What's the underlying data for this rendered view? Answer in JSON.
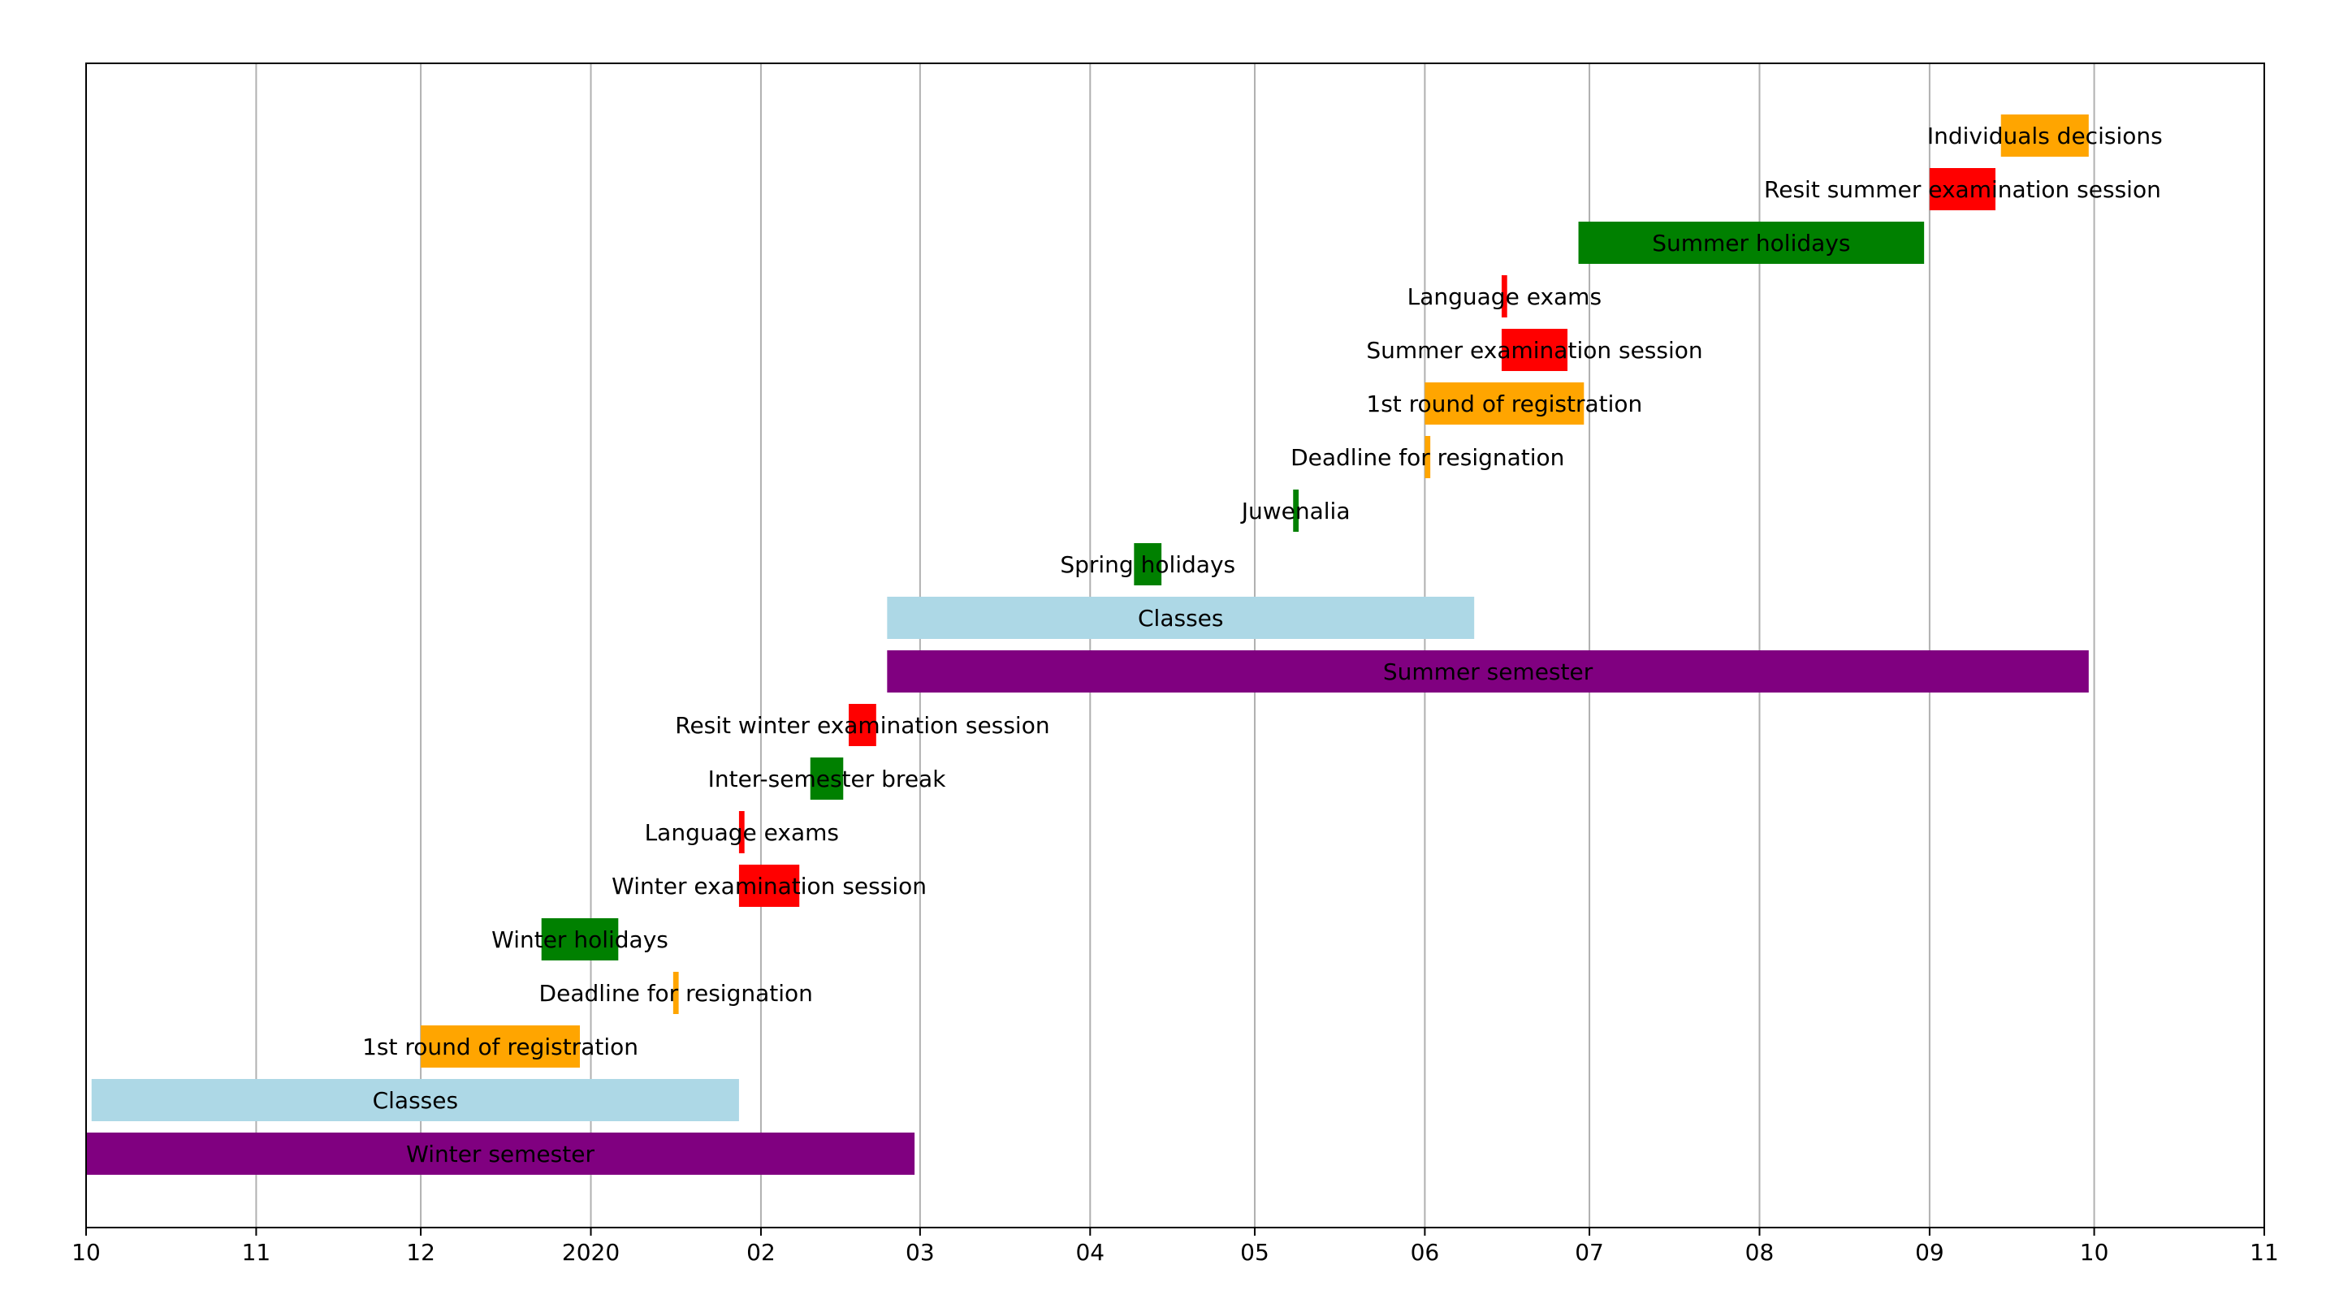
{
  "chart_data": {
    "type": "gantt",
    "title": "",
    "xlabel": "",
    "ylabel": "",
    "grid": "vertical",
    "x_range": [
      "2019-10-01",
      "2020-11-01"
    ],
    "tick_labels": [
      "10",
      "11",
      "12",
      "2020",
      "02",
      "03",
      "04",
      "05",
      "06",
      "07",
      "08",
      "09",
      "10",
      "11"
    ],
    "tick_dates": [
      "2019-10-01",
      "2019-11-01",
      "2019-12-01",
      "2020-01-01",
      "2020-02-01",
      "2020-03-01",
      "2020-04-01",
      "2020-05-01",
      "2020-06-01",
      "2020-07-01",
      "2020-08-01",
      "2020-09-01",
      "2020-10-01",
      "2020-11-01"
    ],
    "colors": {
      "semester": "#800080",
      "classes": "#add8e6",
      "registration": "#ffa500",
      "exams": "#ff0000",
      "holidays": "#008000"
    },
    "tasks": [
      {
        "label": "Winter semester",
        "start": "2019-10-01",
        "end": "2020-02-29",
        "category": "semester"
      },
      {
        "label": "Classes",
        "start": "2019-10-02",
        "end": "2020-01-28",
        "category": "classes"
      },
      {
        "label": "1st round of registration",
        "start": "2019-12-01",
        "end": "2019-12-30",
        "category": "registration"
      },
      {
        "label": "Deadline for resignation",
        "start": "2020-01-16",
        "end": "2020-01-17",
        "category": "registration"
      },
      {
        "label": "Winter holidays",
        "start": "2019-12-23",
        "end": "2020-01-06",
        "category": "holidays"
      },
      {
        "label": "Winter examination session",
        "start": "2020-01-28",
        "end": "2020-02-08",
        "category": "exams"
      },
      {
        "label": "Language exams",
        "start": "2020-01-28",
        "end": "2020-01-29",
        "category": "exams"
      },
      {
        "label": "Inter-semester break",
        "start": "2020-02-10",
        "end": "2020-02-16",
        "category": "holidays"
      },
      {
        "label": "Resit winter examination session",
        "start": "2020-02-17",
        "end": "2020-02-22",
        "category": "exams"
      },
      {
        "label": "Summer semester",
        "start": "2020-02-24",
        "end": "2020-09-30",
        "category": "semester"
      },
      {
        "label": "Classes",
        "start": "2020-02-24",
        "end": "2020-06-10",
        "category": "classes"
      },
      {
        "label": "Spring holidays",
        "start": "2020-04-09",
        "end": "2020-04-14",
        "category": "holidays"
      },
      {
        "label": "Juwenalia",
        "start": "2020-05-08",
        "end": "2020-05-09",
        "category": "holidays"
      },
      {
        "label": "Deadline for resignation",
        "start": "2020-06-01",
        "end": "2020-06-02",
        "category": "registration"
      },
      {
        "label": "1st round of registration",
        "start": "2020-06-01",
        "end": "2020-06-30",
        "category": "registration"
      },
      {
        "label": "Summer examination session",
        "start": "2020-06-15",
        "end": "2020-06-27",
        "category": "exams"
      },
      {
        "label": "Language exams",
        "start": "2020-06-15",
        "end": "2020-06-16",
        "category": "exams"
      },
      {
        "label": "Summer holidays",
        "start": "2020-06-29",
        "end": "2020-08-31",
        "category": "holidays"
      },
      {
        "label": "Resit summer examination session",
        "start": "2020-09-01",
        "end": "2020-09-13",
        "category": "exams"
      },
      {
        "label": "Individuals decisions",
        "start": "2020-09-14",
        "end": "2020-09-30",
        "category": "registration"
      }
    ]
  }
}
